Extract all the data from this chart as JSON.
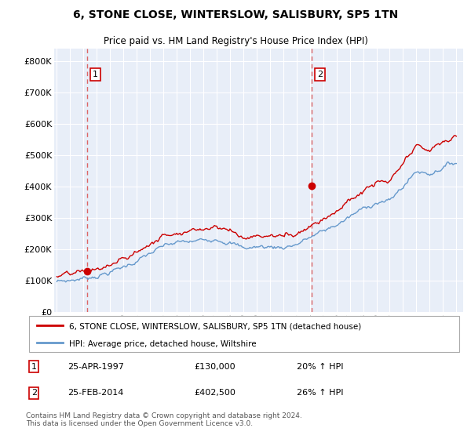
{
  "title": "6, STONE CLOSE, WINTERSLOW, SALISBURY, SP5 1TN",
  "subtitle": "Price paid vs. HM Land Registry's House Price Index (HPI)",
  "legend_line1": "6, STONE CLOSE, WINTERSLOW, SALISBURY, SP5 1TN (detached house)",
  "legend_line2": "HPI: Average price, detached house, Wiltshire",
  "footnote": "Contains HM Land Registry data © Crown copyright and database right 2024.\nThis data is licensed under the Open Government Licence v3.0.",
  "sale1_date": "25-APR-1997",
  "sale1_price": 130000,
  "sale1_label": "20% ↑ HPI",
  "sale2_date": "25-FEB-2014",
  "sale2_price": 402500,
  "sale2_label": "26% ↑ HPI",
  "sale1_x": 1997.3,
  "sale2_x": 2014.15,
  "red_line_color": "#cc0000",
  "blue_line_color": "#6699cc",
  "vline_color": "#dd6666",
  "dot_color": "#cc0000",
  "background_color": "#e8eef8",
  "grid_color": "#d0d8e8",
  "ylim_min": 0,
  "ylim_max": 840000,
  "xlim_min": 1994.8,
  "xlim_max": 2025.5,
  "yticks": [
    0,
    100000,
    200000,
    300000,
    400000,
    500000,
    600000,
    700000,
    800000
  ],
  "ytick_labels": [
    "£0",
    "£100K",
    "£200K",
    "£300K",
    "£400K",
    "£500K",
    "£600K",
    "£700K",
    "£800K"
  ],
  "xticks": [
    1995,
    1996,
    1997,
    1998,
    1999,
    2000,
    2001,
    2002,
    2003,
    2004,
    2005,
    2006,
    2007,
    2008,
    2009,
    2010,
    2011,
    2012,
    2013,
    2014,
    2015,
    2016,
    2017,
    2018,
    2019,
    2020,
    2021,
    2022,
    2023,
    2024,
    2025
  ]
}
